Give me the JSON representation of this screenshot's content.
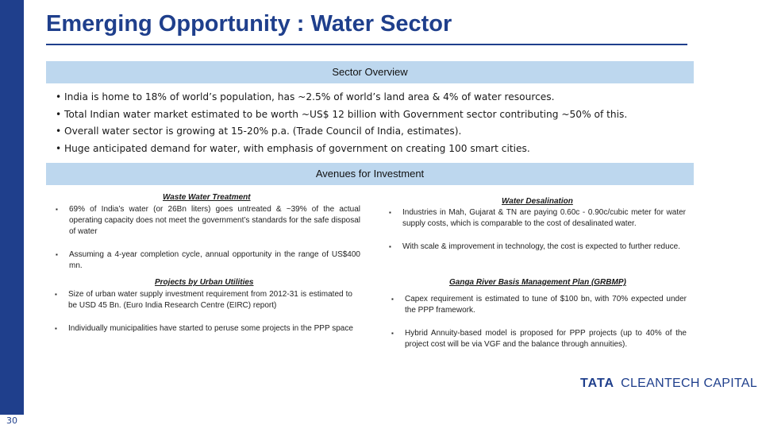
{
  "page_number": "30",
  "title": "Emerging Opportunity : Water Sector",
  "sector_overview": {
    "heading": "Sector Overview",
    "bullet": "•",
    "items": [
      "India is home to 18% of world’s population, has ~2.5% of world’s land area & 4% of water resources.",
      "Total Indian water market estimated to be worth ~US$ 12 billion with Government sector contributing ~50% of this.",
      "Overall water sector is growing at 15-20% p.a. (Trade Council of India, estimates).",
      "Huge anticipated demand for water, with emphasis of government on creating 100 smart cities."
    ]
  },
  "avenues": {
    "heading": "Avenues for Investment",
    "marker": "▪",
    "waste_water": {
      "heading": "Waste Water Treatment",
      "points": [
        "69% of India’s water (or 26Bn liters) goes untreated & ~39% of the actual operating capacity does not meet the government’s standards for the safe disposal of water",
        "Assuming a 4-year completion cycle, annual opportunity in the range of US$400 mn."
      ]
    },
    "urban_utilities": {
      "heading": "Projects by Urban Utilities",
      "points": [
        "Size of urban water supply investment requirement from 2012-31 is estimated to be USD 45 Bn. (Euro India Research Centre (EIRC) report)",
        "Individually municipalities have started to peruse some projects in the PPP space"
      ]
    },
    "desalination": {
      "heading": "Water Desalination",
      "points": [
        "Industries in Mah, Gujarat & TN are paying 0.60c - 0.90c/cubic meter for water supply costs, which is comparable to the cost of desalinated water.",
        "With scale & improvement in technology, the cost is expected to further reduce."
      ]
    },
    "ganga": {
      "heading": "Ganga River Basis Management Plan (GRBMP)",
      "points": [
        "Capex requirement is estimated to tune of $100 bn, with 70% expected under the PPP framework.",
        "Hybrid Annuity-based model is proposed for PPP projects (up to 40% of the project cost will be via VGF and the balance through annuities)."
      ]
    }
  },
  "logo": {
    "brand": "TATA",
    "name": "CLEANTECH CAPITAL"
  },
  "colors": {
    "brand_blue": "#1f3f8c",
    "band_blue": "#bdd7ee"
  }
}
